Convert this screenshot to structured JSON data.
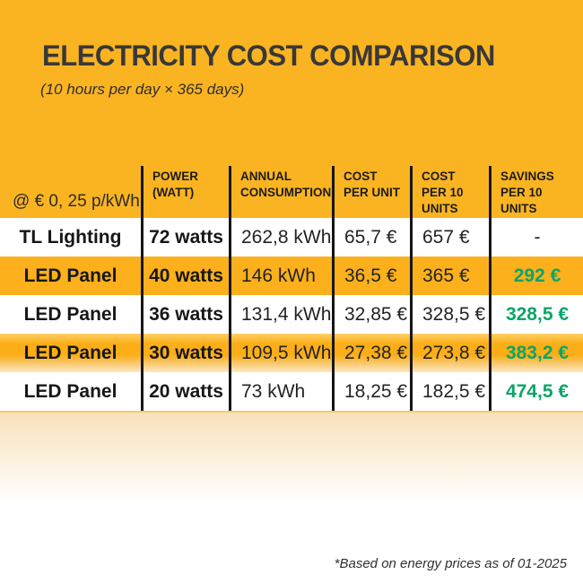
{
  "page": {
    "title": "ELECTRICITY COST COMPARISON",
    "subtitle": "(10 hours per day × 365 days)",
    "footnote": "*Based on energy prices as of 01-2025"
  },
  "colors": {
    "background_orange": "#FBB421",
    "row_orange": "#FBB01C",
    "savings_green": "#0CA468",
    "line_black": "#161616",
    "title_gray": "#383838"
  },
  "table": {
    "rate_label": "@ € 0, 25 p/kWh",
    "headers": {
      "power": "POWER\n(WATT)",
      "annual": "ANNUAL\nCONSUMPTION",
      "cost_unit": "COST\nPER UNIT",
      "cost_10": "COST\nPER 10\nUNITS",
      "savings_10": "SAVINGS\nPER 10\nUNITS"
    },
    "rows": [
      {
        "name": "TL Lighting",
        "power": "72 watts",
        "annual": "262,8 kWh",
        "cost_unit": "65,7 €",
        "cost_10": "657 €",
        "savings": "-"
      },
      {
        "name": "LED Panel",
        "power": "40 watts",
        "annual": "146 kWh",
        "cost_unit": "36,5 €",
        "cost_10": "365 €",
        "savings": "292 €"
      },
      {
        "name": "LED Panel",
        "power": "36 watts",
        "annual": "131,4 kWh",
        "cost_unit": "32,85 €",
        "cost_10": "328,5 €",
        "savings": "328,5 €"
      },
      {
        "name": "LED Panel",
        "power": "30 watts",
        "annual": "109,5 kWh",
        "cost_unit": "27,38 €",
        "cost_10": "273,8 €",
        "savings": "383,2 €"
      },
      {
        "name": "LED Panel",
        "power": "20 watts",
        "annual": "73 kWh",
        "cost_unit": "18,25 €",
        "cost_10": "182,5 €",
        "savings": "474,5 €"
      }
    ]
  },
  "chart_data": {
    "type": "table",
    "title": "ELECTRICITY COST COMPARISON",
    "subtitle": "(10 hours per day × 365 days)",
    "price_assumption": "@ € 0, 25 p/kWh",
    "columns": [
      "",
      "POWER (WATT)",
      "ANNUAL CONSUMPTION",
      "COST PER UNIT",
      "COST PER 10 UNITS",
      "SAVINGS PER 10 UNITS"
    ],
    "rows": [
      [
        "TL Lighting",
        "72 watts",
        "262,8 kWh",
        "65,7 €",
        "657 €",
        "-"
      ],
      [
        "LED Panel",
        "40 watts",
        "146 kWh",
        "36,5 €",
        "365 €",
        "292 €"
      ],
      [
        "LED Panel",
        "36 watts",
        "131,4 kWh",
        "32,85 €",
        "328,5 €",
        "328,5 €"
      ],
      [
        "LED Panel",
        "30 watts",
        "109,5 kWh",
        "27,38 €",
        "273,8 €",
        "383,2 €"
      ],
      [
        "LED Panel",
        "20 watts",
        "73 kWh",
        "18,25 €",
        "182,5 €",
        "474,5 €"
      ]
    ],
    "footnote": "*Based on energy prices as of 01-2025"
  }
}
